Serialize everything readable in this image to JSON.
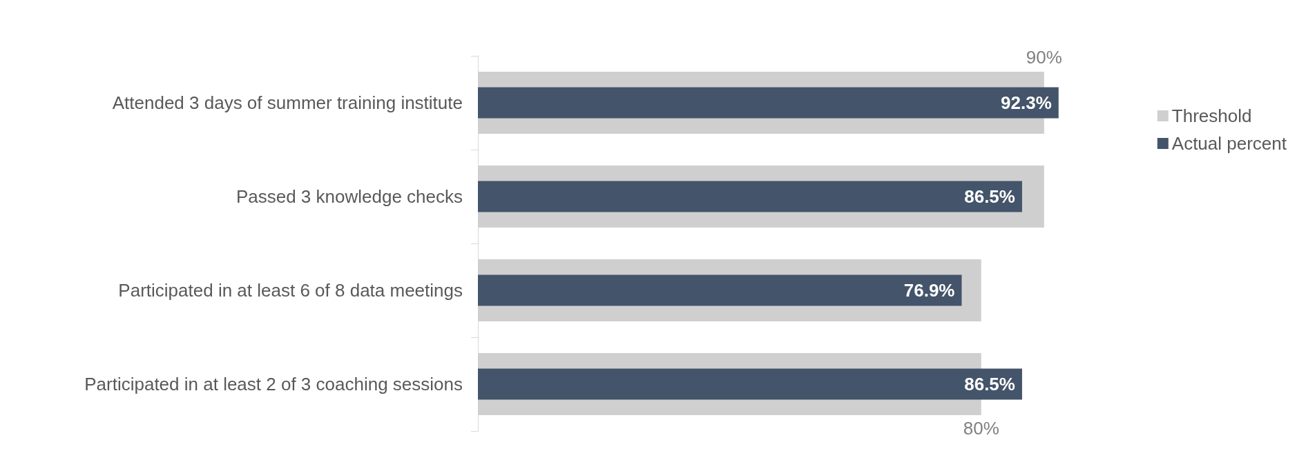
{
  "chart_data": {
    "type": "bar",
    "orientation": "horizontal",
    "categories": [
      "Attended 3 days of summer training institute",
      "Passed 3 knowledge checks",
      "Participated in at least 6 of 8 data meetings",
      "Participated in at least 2 of 3 coaching sessions"
    ],
    "series": [
      {
        "name": "Threshold",
        "color": "#d0cfd0",
        "values": [
          90,
          90,
          80,
          80
        ],
        "value_labels": [
          "90%",
          null,
          null,
          "80%"
        ]
      },
      {
        "name": "Actual percent",
        "color": "#44546a",
        "values": [
          92.3,
          86.5,
          76.9,
          86.5
        ],
        "value_labels": [
          "92.3%",
          "86.5%",
          "76.9%",
          "86.5%"
        ]
      }
    ],
    "grid": false,
    "legend": "right"
  }
}
